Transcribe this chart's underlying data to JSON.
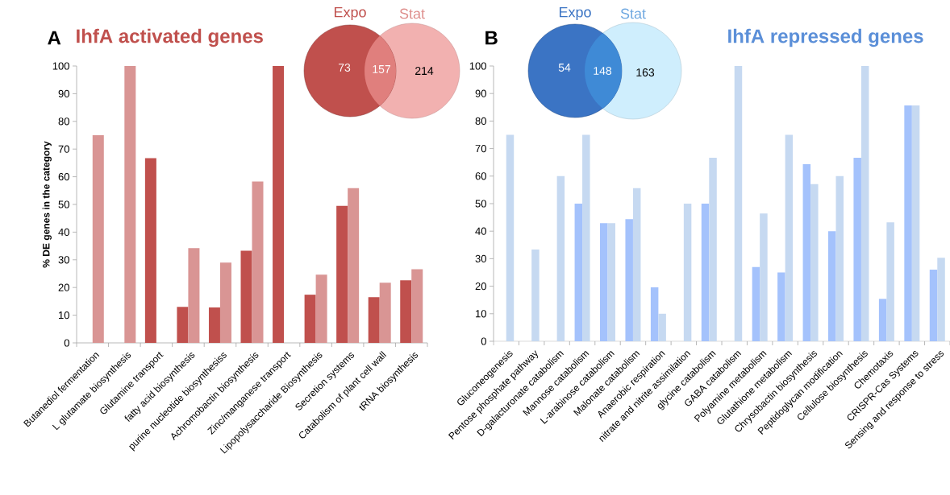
{
  "chart_data": [
    {
      "type": "bar",
      "title": "IhfA activated genes",
      "annotations": [
        "A",
        "Expo",
        "Stat",
        "73",
        "157",
        "214"
      ],
      "ylabel": "% DE genes in the category",
      "categories": [
        "Butanediol fermentation",
        "L glutamate biosynthesis",
        "Glutamine transport",
        "fatty acid biosynthesis",
        "purine nucleotide biosynthesiss",
        "Achromobactin biosynthesis",
        "Zinc/manganese transport",
        "Lipopolysaccharide Biosynthesis",
        "Secretion systems",
        "Catabolism of plant cell wall",
        "tRNA biosynthesis"
      ],
      "series": [
        {
          "color": "#c0504d",
          "values": [
            null,
            null,
            66.7,
            13,
            12.8,
            33.3,
            100,
            17.4,
            49.5,
            16.5,
            22.6
          ]
        },
        {
          "color": "#d99594",
          "values": [
            75,
            100,
            null,
            34.2,
            29,
            58.3,
            null,
            24.6,
            55.9,
            21.7,
            26.6
          ]
        }
      ],
      "ylim": [
        0,
        100
      ],
      "yticks": [
        0,
        10,
        20,
        30,
        40,
        50,
        60,
        70,
        80,
        90,
        100
      ],
      "grid": false
    },
    {
      "type": "bar",
      "title": "IhfA repressed genes",
      "annotations": [
        "B",
        "Expo",
        "Stat",
        "54",
        "148",
        "163"
      ],
      "categories": [
        "Gluconeogenesis",
        "Pentose phosphate pathway",
        "D-galacturonate catabolism",
        "Mannose catabolism",
        "L-arabinose catabolism",
        "Malonate catabolism",
        "Anaerobic respiration",
        "nitrate and nitrite assimilation",
        "glycine catabolism",
        "GABA catabolism",
        "Polyamine metabolism",
        "Glutathione metabolism",
        "Chrysobactin biosynthesis",
        "Peptidoglycan modification",
        "Cellulose biosynthesis",
        "Chemotaxis",
        "CRISPR-Cas Systems",
        "Sensing and response to stress"
      ],
      "series": [
        {
          "color": "#a4c2fc",
          "values": [
            null,
            null,
            null,
            50,
            42.9,
            44.4,
            19.6,
            null,
            50,
            null,
            27,
            25,
            64.3,
            40,
            66.7,
            15.4,
            85.7,
            26
          ]
        },
        {
          "color": "#c6d9f1",
          "values": [
            75,
            33.3,
            60,
            75,
            42.9,
            55.6,
            10,
            50,
            66.7,
            100,
            46.4,
            75,
            57.1,
            60,
            100,
            43.2,
            85.7,
            30.3
          ]
        }
      ],
      "ylim": [
        0,
        100
      ],
      "yticks": [
        0,
        10,
        20,
        30,
        40,
        50,
        60,
        70,
        80,
        90,
        100
      ],
      "grid": false
    }
  ]
}
